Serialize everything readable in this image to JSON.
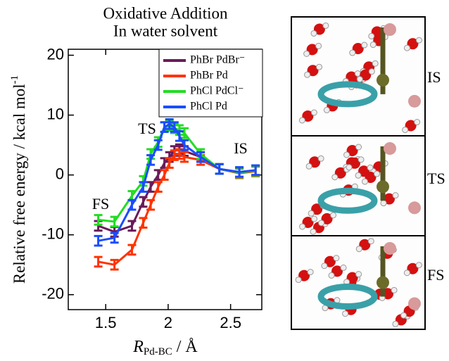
{
  "chart_data": {
    "type": "line",
    "title": [
      "Oxidative Addition",
      "In water solvent"
    ],
    "ylabel": "Relative free energy / kcal mol",
    "ylabel_sup": "-1",
    "xlabel": "R",
    "xlabel_sub": "Pd-BC",
    "xlabel_unit": " / Å",
    "x": [
      1.44,
      1.57,
      1.71,
      1.8,
      1.86,
      1.92,
      1.97,
      2.01,
      2.05,
      2.09,
      2.13,
      2.26,
      2.41,
      2.57,
      2.7
    ],
    "series": [
      {
        "name": "PhBr PdBr⁻",
        "color": "#6a1b5a",
        "values": [
          -8.5,
          -9.5,
          -8.5,
          -4.5,
          -2,
          0,
          2,
          3,
          4,
          4.3,
          4,
          3,
          1,
          0.3,
          0.7
        ],
        "errors": [
          0.8,
          0.8,
          0.8,
          0.8,
          0.8,
          0.8,
          0.8,
          0.8,
          0.8,
          0.8,
          0.8,
          0.8,
          0.8,
          0.8,
          0.8
        ]
      },
      {
        "name": "PhBr Pd",
        "color": "#ff3300",
        "values": [
          -14.5,
          -15,
          -12.5,
          -8,
          -5,
          -2,
          0,
          2,
          3.3,
          3.5,
          3,
          2.5,
          1,
          0.3,
          0.6
        ],
        "errors": [
          0.8,
          0.8,
          0.8,
          0.8,
          0.8,
          0.8,
          0.8,
          0.8,
          0.8,
          0.8,
          0.8,
          0.8,
          0.8,
          0.8,
          0.8
        ]
      },
      {
        "name": "PhCl PdCl⁻",
        "color": "#22dd22",
        "values": [
          -7.5,
          -7.8,
          -3.5,
          -1,
          3.5,
          5.5,
          8,
          8.2,
          7.8,
          7.5,
          7,
          3.5,
          1,
          0.4,
          0.7
        ],
        "errors": [
          0.8,
          0.8,
          0.8,
          0.8,
          0.8,
          0.8,
          0.8,
          0.8,
          0.8,
          0.8,
          0.8,
          0.8,
          0.8,
          0.8,
          0.8
        ]
      },
      {
        "name": "PhCl Pd",
        "color": "#1a4dff",
        "values": [
          -11,
          -10.5,
          -5,
          -2,
          2.5,
          5,
          8,
          8.5,
          8,
          6.5,
          5,
          3,
          1,
          0.5,
          0.8
        ],
        "errors": [
          0.8,
          0.8,
          0.8,
          0.8,
          0.8,
          0.8,
          0.8,
          0.8,
          0.8,
          0.8,
          0.8,
          0.8,
          0.8,
          0.8,
          0.8
        ]
      }
    ],
    "annotations": [
      "FS",
      "TS",
      "IS"
    ],
    "xlim": [
      1.2,
      2.75
    ],
    "ylim": [
      -22.5,
      21
    ],
    "xticks": [
      1.5,
      2,
      2.5
    ],
    "yticks": [
      -20,
      -10,
      0,
      10,
      20
    ],
    "legend": "upper right"
  },
  "panels": [
    "IS",
    "TS",
    "FS"
  ]
}
